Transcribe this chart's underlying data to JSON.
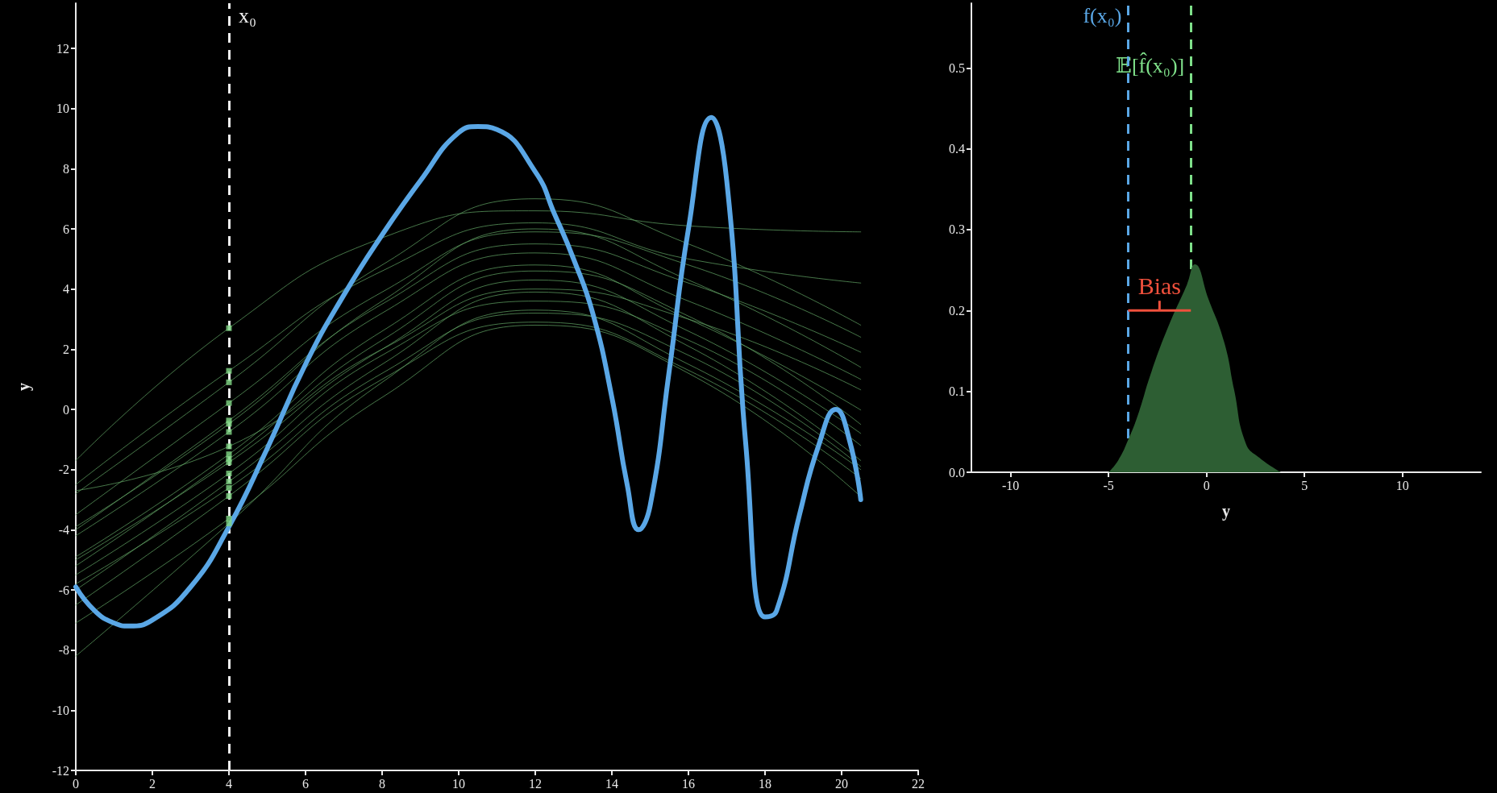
{
  "chart_data": [
    {
      "type": "line",
      "ylabel": "y",
      "xlim": [
        0,
        22
      ],
      "xticks": [
        0,
        2,
        4,
        6,
        8,
        10,
        12,
        14,
        16,
        18,
        20,
        22
      ],
      "ylim": [
        -12,
        13.5
      ],
      "yticks": [
        -12,
        -10,
        -8,
        -6,
        -4,
        -2,
        0,
        2,
        4,
        6,
        8,
        10,
        12
      ],
      "grid": false,
      "ref_lines": [
        {
          "axis": "x",
          "value": 4,
          "label": "x₀",
          "color": "#eeeeee",
          "line_style": "dashed"
        }
      ],
      "series": [
        {
          "color": "#5aa7e6",
          "x": [
            0,
            0.5,
            1,
            1.4,
            2,
            3,
            4,
            5,
            6,
            7,
            8,
            9,
            10,
            10.5,
            11,
            12,
            12.5,
            13,
            13.5,
            14,
            14.4,
            14.7,
            15,
            15.5,
            16,
            16.6,
            17,
            17.5,
            18,
            18.3,
            18.9,
            19.4,
            19.85,
            20.2,
            20.5
          ],
          "values": [
            -5.9,
            -6.7,
            -7.1,
            -7.2,
            -7.0,
            -5.9,
            -3.9,
            -1.3,
            1.5,
            3.8,
            5.8,
            7.6,
            9.2,
            9.4,
            9.3,
            7.9,
            6.5,
            5.0,
            3.2,
            0.4,
            -2.5,
            -4.0,
            -3.2,
            1.3,
            6.0,
            9.7,
            7.6,
            -1.2,
            -6.9,
            -6.7,
            -3.5,
            -1.2,
            0,
            -1.0,
            -3.0
          ]
        },
        {
          "color": "#5f9f62",
          "x": [
            0,
            4,
            8,
            12,
            16,
            20.5
          ],
          "values": [
            -1.7,
            2.7,
            5.7,
            6.6,
            6.1,
            5.9
          ]
        },
        {
          "color": "#5f9f62",
          "x": [
            0,
            4,
            8,
            12,
            16,
            20.5
          ],
          "values": [
            -2.5,
            1.28,
            4.6,
            6.2,
            5.0,
            4.2
          ]
        },
        {
          "color": "#5f9f62",
          "x": [
            0,
            4,
            8,
            12,
            16,
            20.5
          ],
          "values": [
            -2.8,
            0.9,
            4.8,
            7.0,
            5.5,
            2.8
          ]
        },
        {
          "color": "#5f9f62",
          "x": [
            0,
            4,
            8,
            12,
            16,
            20.5
          ],
          "values": [
            -3.5,
            0.21,
            3.9,
            5.9,
            4.8,
            2.4
          ]
        },
        {
          "color": "#5f9f62",
          "x": [
            0,
            4,
            8,
            12,
            16,
            20.5
          ],
          "values": [
            -4.0,
            -0.37,
            3.5,
            5.5,
            4.2,
            1.9
          ]
        },
        {
          "color": "#5f9f62",
          "x": [
            0,
            4,
            8,
            12,
            16,
            20.5
          ],
          "values": [
            -3.9,
            -0.48,
            3.6,
            6.0,
            4.3,
            1.4
          ]
        },
        {
          "color": "#5f9f62",
          "x": [
            0,
            4,
            8,
            12,
            16,
            20.5
          ],
          "values": [
            -4.2,
            -0.75,
            3.2,
            5.2,
            3.6,
            1.0
          ]
        },
        {
          "color": "#5f9f62",
          "x": [
            0,
            4,
            8,
            12,
            16,
            20.5
          ],
          "values": [
            -2.7,
            -1.23,
            2.0,
            4.0,
            3.0,
            0.65
          ]
        },
        {
          "color": "#5f9f62",
          "x": [
            0,
            4,
            8,
            12,
            16,
            20.5
          ],
          "values": [
            -4.9,
            -1.49,
            2.6,
            4.8,
            3.0,
            -0.02
          ]
        },
        {
          "color": "#5f9f62",
          "x": [
            0,
            4,
            8,
            12,
            16,
            20.5
          ],
          "values": [
            -5.2,
            -1.65,
            2.3,
            4.6,
            3.1,
            -0.5
          ]
        },
        {
          "color": "#5f9f62",
          "x": [
            0,
            4,
            8,
            12,
            16,
            20.5
          ],
          "values": [
            -5.0,
            -1.76,
            2.0,
            4.3,
            2.6,
            -0.8
          ]
        },
        {
          "color": "#5f9f62",
          "x": [
            0,
            4,
            8,
            12,
            16,
            20.5
          ],
          "values": [
            -5.5,
            -2.13,
            1.8,
            3.6,
            2.3,
            -1.2
          ]
        },
        {
          "color": "#5f9f62",
          "x": [
            0,
            4,
            8,
            12,
            16,
            20.5
          ],
          "values": [
            -6.0,
            -2.4,
            1.5,
            3.9,
            2.1,
            -1.7
          ]
        },
        {
          "color": "#5f9f62",
          "x": [
            0,
            4,
            8,
            12,
            16,
            20.5
          ],
          "values": [
            -5.8,
            -2.61,
            1.2,
            3.2,
            1.8,
            -1.9
          ]
        },
        {
          "color": "#5f9f62",
          "x": [
            0,
            4,
            8,
            12,
            16,
            20.5
          ],
          "values": [
            -6.5,
            -2.88,
            1.0,
            2.9,
            1.3,
            -2.3
          ]
        },
        {
          "color": "#5f9f62",
          "x": [
            0,
            4,
            8,
            12,
            16,
            20.5
          ],
          "values": [
            -7.1,
            -3.63,
            0.4,
            2.8,
            1.2,
            -2.9
          ]
        },
        {
          "color": "#5f9f62",
          "x": [
            0,
            4,
            8,
            12,
            16,
            20.5
          ],
          "values": [
            -8.2,
            -3.79,
            0.9,
            3.3,
            1.5,
            -2.0
          ]
        },
        {
          "type": "scatter",
          "marker": "square",
          "color": "#7fd685",
          "x": [
            4,
            4,
            4,
            4,
            4,
            4,
            4,
            4,
            4,
            4,
            4,
            4,
            4,
            4,
            4,
            4,
            4
          ],
          "values": [
            2.7,
            1.28,
            0.9,
            0.21,
            -0.37,
            -0.48,
            -0.75,
            -1.23,
            -1.49,
            -1.65,
            -1.76,
            -2.13,
            -2.4,
            -2.61,
            -2.88,
            -3.63,
            -3.79
          ]
        }
      ]
    },
    {
      "type": "area",
      "xlabel": "y",
      "xlim": [
        -12,
        14
      ],
      "xticks": [
        -10,
        -5,
        0,
        5,
        10
      ],
      "ylim": [
        0,
        0.58
      ],
      "yticks": [
        {
          "value": 0,
          "label": "0.0"
        },
        {
          "value": 0.1,
          "label": "0.1"
        },
        {
          "value": 0.2,
          "label": "0.2"
        },
        {
          "value": 0.3,
          "label": "0.3"
        },
        {
          "value": 0.4,
          "label": "0.4"
        },
        {
          "value": 0.5,
          "label": "0.5"
        }
      ],
      "grid": false,
      "ref_lines": [
        {
          "axis": "x",
          "value": -4.0,
          "label": "f(x₀)",
          "color": "#5aa7e6",
          "line_style": "dashed"
        },
        {
          "axis": "x",
          "value": -0.8,
          "label": "𝔼[f̂(x₀)]",
          "color": "#7fe08a",
          "line_style": "dashed"
        }
      ],
      "annotations": [
        "Bias"
      ],
      "series": [
        {
          "color": "#2d5e33",
          "x": [
            -5.0,
            -4.5,
            -4.0,
            -3.5,
            -2.8,
            -1.9,
            -1.0,
            -0.6,
            0.1,
            0.9,
            1.4,
            2.0,
            2.7,
            3.8
          ],
          "values": [
            0,
            0.015,
            0.04,
            0.071,
            0.125,
            0.183,
            0.232,
            0.257,
            0.214,
            0.161,
            0.103,
            0.036,
            0.018,
            0
          ]
        }
      ]
    }
  ]
}
